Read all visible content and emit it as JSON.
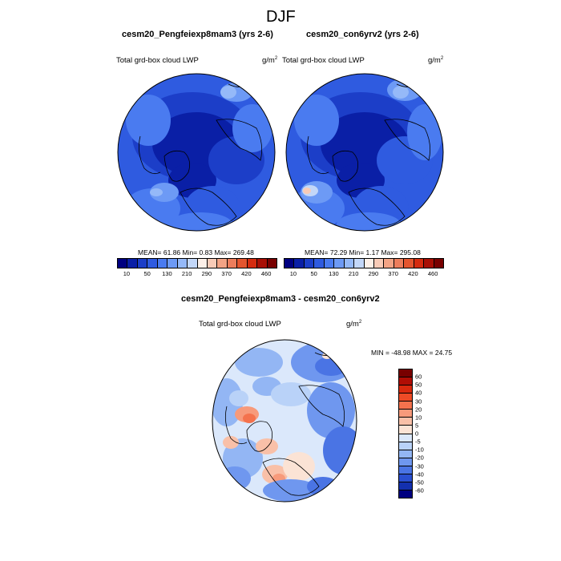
{
  "figure": {
    "title": "DJF"
  },
  "panels": {
    "left": {
      "title": "cesm20_Pengfeiexp8mam3 (yrs 2-6)",
      "variable": "Total grd-box cloud LWP",
      "units_base": "g/m",
      "units_exp": "2",
      "stats": "MEAN=  61.86  Min=   0.83  Max= 269.48"
    },
    "right": {
      "title": "cesm20_con6yrv2 (yrs 2-6)",
      "variable": "Total grd-box cloud LWP",
      "units_base": "g/m",
      "units_exp": "2",
      "stats": "MEAN=  72.29  Min=   1.17  Max= 295.08"
    },
    "diff": {
      "title": "cesm20_Pengfeiexp8mam3 - cesm20_con6yrv2",
      "variable": "Total grd-box cloud LWP",
      "units_base": "g/m",
      "units_exp": "2",
      "stats": "MIN = -48.98 MAX =  24.75"
    }
  },
  "colorbars": {
    "abs": {
      "colors": [
        "#000080",
        "#0a1fa6",
        "#1c3ec8",
        "#2f5be0",
        "#4a7bf0",
        "#6d9af5",
        "#95b9f8",
        "#c3d7f8",
        "#fdf0e8",
        "#f8cbb7",
        "#f2a385",
        "#ec7d5c",
        "#e4552f",
        "#d52b0f",
        "#a80f05",
        "#780000"
      ],
      "tick_labels": [
        "10",
        "50",
        "130",
        "210",
        "290",
        "370",
        "420",
        "460"
      ]
    },
    "diff": {
      "colors": [
        "#780000",
        "#b00d05",
        "#d9290e",
        "#ee4b26",
        "#f4724d",
        "#f79a7b",
        "#f9c0a8",
        "#fbe3d5",
        "#dbe8fb",
        "#b9d2f8",
        "#93b6f4",
        "#6f97ef",
        "#4a74e4",
        "#2a4fd0",
        "#1330ae",
        "#000080"
      ],
      "tick_labels": [
        "60",
        "50",
        "40",
        "30",
        "20",
        "10",
        "5",
        "0",
        "-5",
        "-10",
        "-20",
        "-30",
        "-40",
        "-50",
        "-60"
      ]
    }
  },
  "map_layers": {
    "left": "left-map-field",
    "right": "right-map-field",
    "diff": "diff-map-field"
  }
}
